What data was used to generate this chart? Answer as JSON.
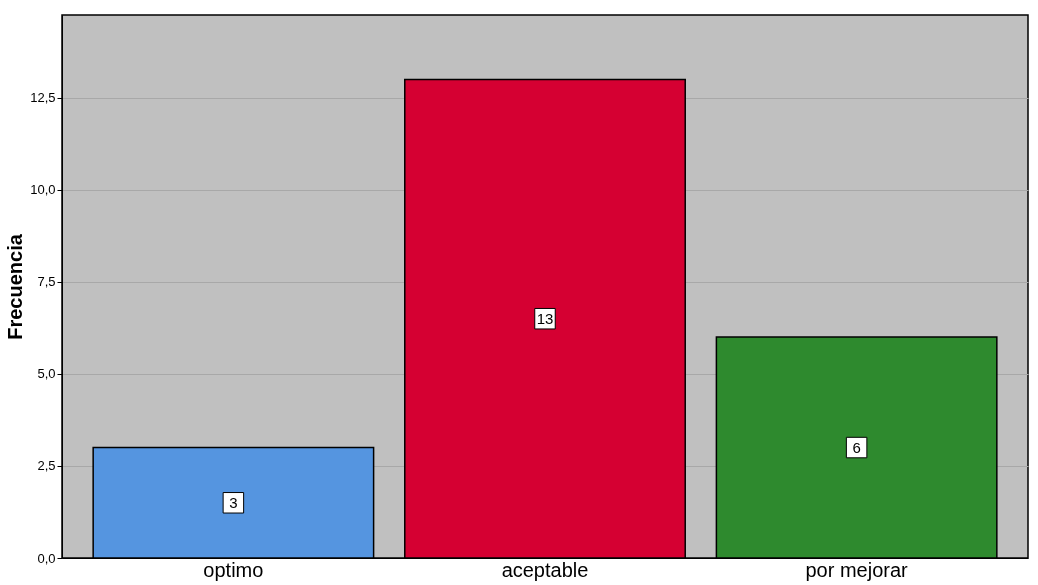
{
  "chart_data": {
    "type": "bar",
    "ylabel": "Frecuencia",
    "categories": [
      "optimo",
      "aceptable",
      "por mejorar"
    ],
    "values": [
      3,
      13,
      6
    ],
    "colors": [
      "#5595e0",
      "#d50032",
      "#2e8a2e"
    ],
    "ylim": [
      0,
      14.75
    ],
    "yticks": [
      {
        "value": 0,
        "label": "0,0"
      },
      {
        "value": 2.5,
        "label": "2,5"
      },
      {
        "value": 5,
        "label": "5,0"
      },
      {
        "value": 7.5,
        "label": "7,5"
      },
      {
        "value": 10,
        "label": "10,0"
      },
      {
        "value": 12.5,
        "label": "12,5"
      }
    ],
    "grid": "y",
    "data_labels": true
  }
}
